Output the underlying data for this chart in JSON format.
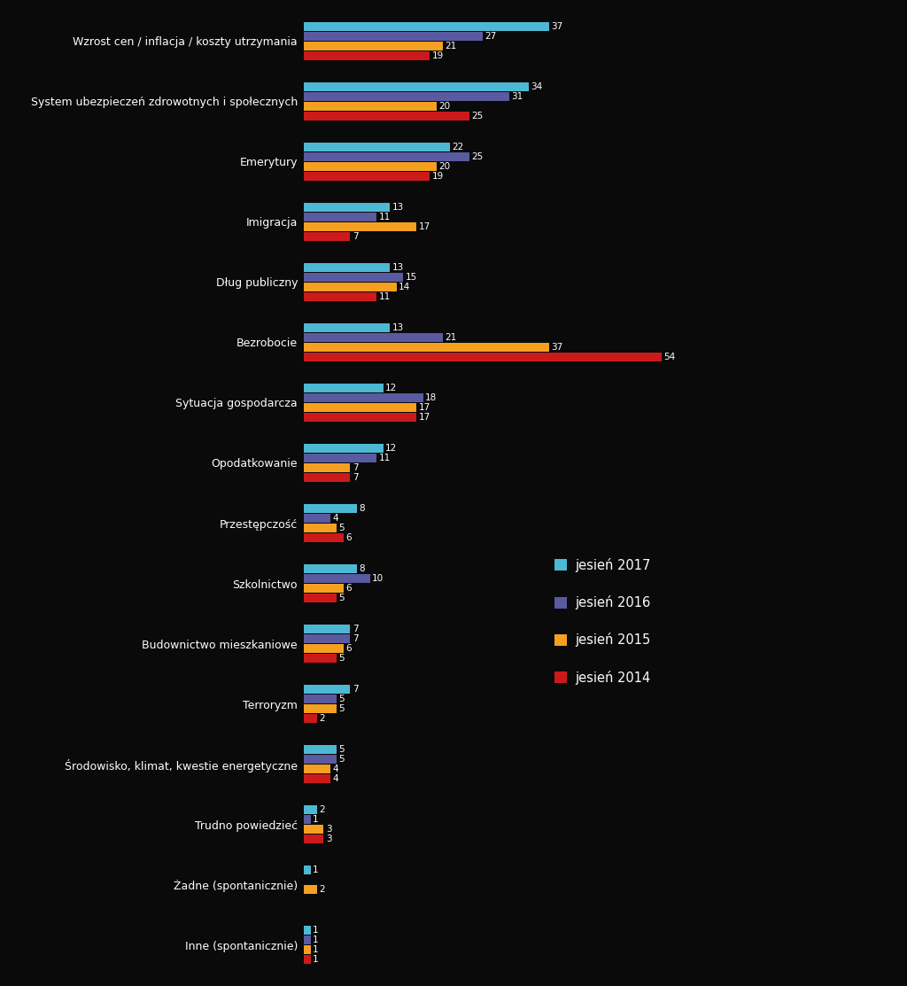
{
  "categories": [
    "Wzrost cen / inflacja / koszty utrzymania",
    "System ubezpieczeń zdrowotnych i społecznych",
    "Emerytury",
    "Imigracja",
    "Dług publiczny",
    "Bezrobocie",
    "Sytuacja gospodarcza",
    "Opodatkowanie",
    "Przestępczość",
    "Szkolnictwo",
    "Budownictwo mieszkaniowe",
    "Terroryzm",
    "Środowisko, klimat, kwestie energetyczne",
    "Trudno powiedzieć",
    "Żadne (spontanicznie)",
    "Inne (spontanicznie)"
  ],
  "series": {
    "jesień 2017": [
      37,
      34,
      22,
      13,
      13,
      13,
      12,
      12,
      8,
      8,
      7,
      7,
      5,
      2,
      1,
      1
    ],
    "jesień 2016": [
      27,
      31,
      25,
      11,
      15,
      21,
      18,
      11,
      4,
      10,
      7,
      5,
      5,
      1,
      0,
      1
    ],
    "jesień 2015": [
      21,
      20,
      20,
      17,
      14,
      37,
      17,
      7,
      5,
      6,
      6,
      5,
      4,
      3,
      2,
      1
    ],
    "jesień 2014": [
      19,
      25,
      19,
      7,
      11,
      54,
      17,
      7,
      6,
      5,
      5,
      2,
      4,
      3,
      0,
      1
    ]
  },
  "colors": {
    "jesień 2017": "#4DB8D4",
    "jesień 2016": "#5A5AA0",
    "jesień 2015": "#F5A020",
    "jesień 2014": "#CC1A1A"
  },
  "background_color": "#0A0A0A",
  "text_color": "#FFFFFF",
  "bar_height": 0.16,
  "label_fontsize": 7.5,
  "ytick_fontsize": 9.0,
  "legend_fontsize": 10.5
}
